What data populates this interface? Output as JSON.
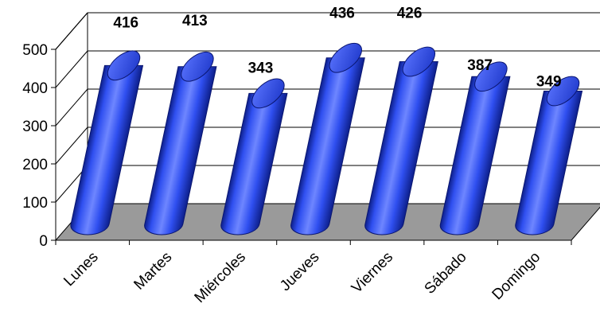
{
  "chart_data": {
    "type": "bar",
    "style": "3d-cylinder",
    "categories": [
      "Lunes",
      "Martes",
      "Miércoles",
      "Jueves",
      "Viernes",
      "Sábado",
      "Domingo"
    ],
    "values": [
      416,
      413,
      343,
      436,
      426,
      387,
      349
    ],
    "ylim": [
      0,
      500
    ],
    "yticks": [
      0,
      100,
      200,
      300,
      400,
      500
    ],
    "grid": true,
    "legend": "none",
    "colors": {
      "bar": "#2f4ff0",
      "bar_dark": "#0d1f8a",
      "bar_light": "#6e86ff",
      "floor": "#9a9a9a",
      "grid": "#000000"
    }
  }
}
